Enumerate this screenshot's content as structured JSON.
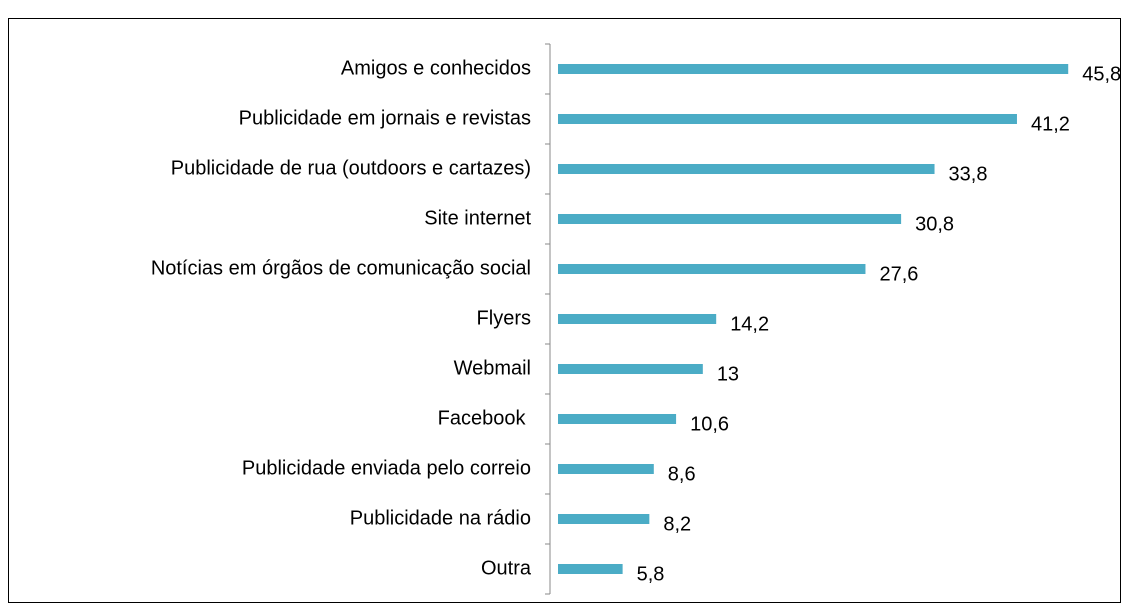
{
  "chart_data": {
    "type": "bar",
    "orientation": "horizontal",
    "categories": [
      "Amigos e conhecidos",
      "Publicidade em jornais e revistas",
      "Publicidade de rua (outdoors e cartazes)",
      "Site internet",
      "Notícias em órgãos de comunicação social",
      "Flyers",
      "Webmail",
      "Facebook ",
      "Publicidade enviada pelo correio",
      "Publicidade na rádio",
      "Outra"
    ],
    "values": [
      45.8,
      41.2,
      33.8,
      30.8,
      27.6,
      14.2,
      13,
      10.6,
      8.6,
      8.2,
      5.8
    ],
    "value_labels": [
      "45,8",
      "41,2",
      "33,8",
      "30,8",
      "27,6",
      "14,2",
      "13",
      "10,6",
      "8,6",
      "8,2",
      "5,8"
    ],
    "color": "#4bacc6"
  }
}
